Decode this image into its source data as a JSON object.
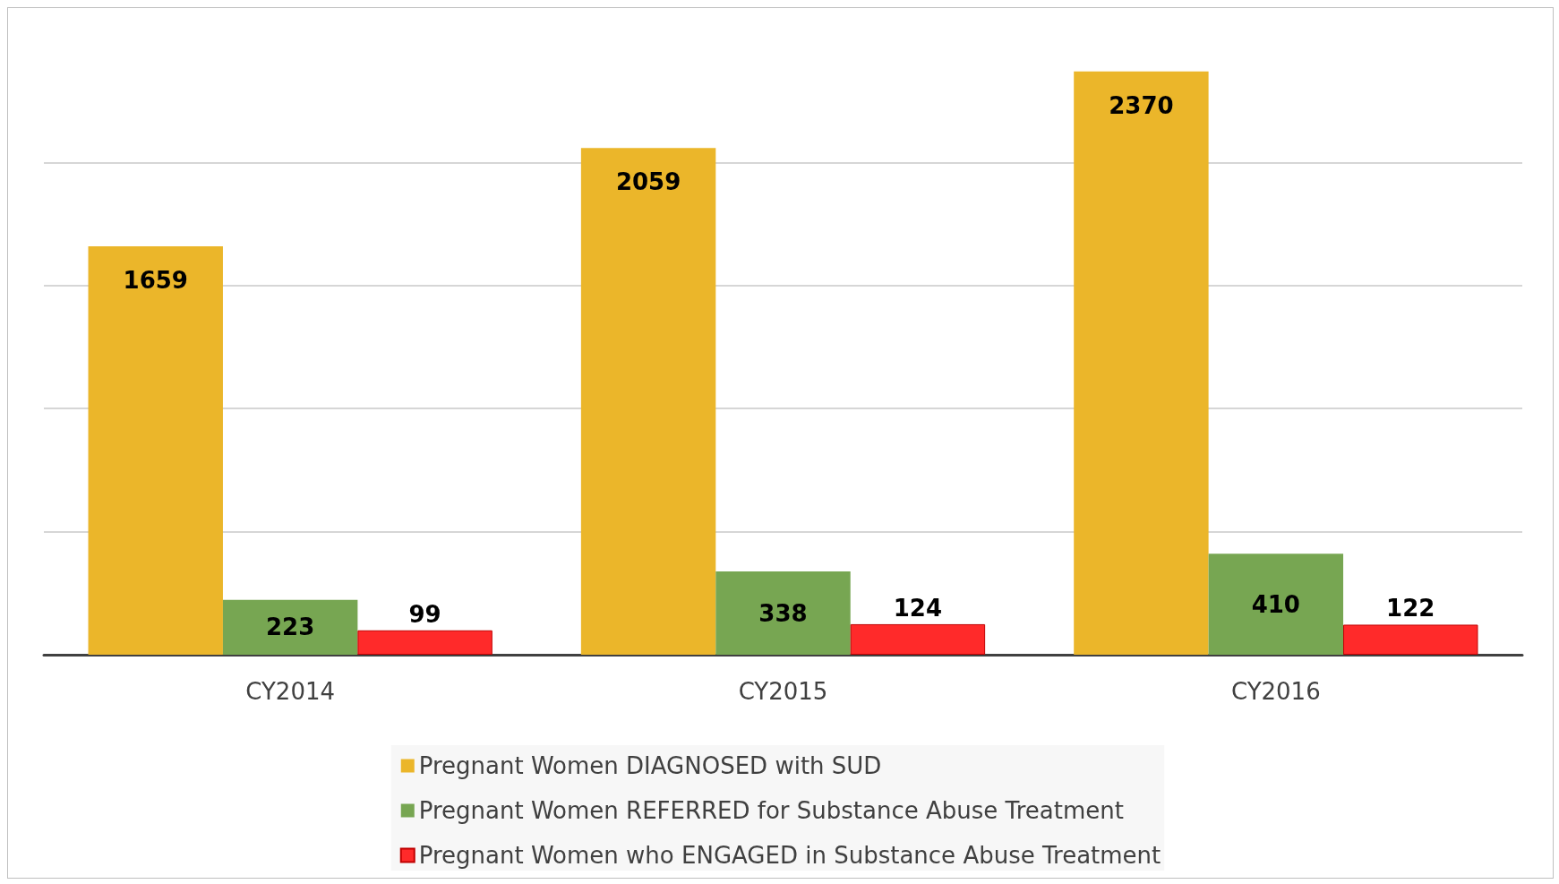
{
  "chart_data": {
    "type": "bar",
    "categories": [
      "CY2014",
      "CY2015",
      "CY2016"
    ],
    "series": [
      {
        "name": "Pregnant Women DIAGNOSED with SUD",
        "color": "#ebb62a",
        "values": [
          1659,
          2059,
          2370
        ]
      },
      {
        "name": "Pregnant Women REFERRED for Substance Abuse Treatment",
        "color": "#77a652",
        "values": [
          223,
          338,
          410
        ]
      },
      {
        "name": "Pregnant Women who ENGAGED in Substance Abuse Treatment",
        "color": "#ff2a2a",
        "values": [
          99,
          124,
          122
        ]
      }
    ],
    "yticks": [
      {
        "value": 0,
        "label": null
      },
      {
        "value": 500,
        "label": null
      },
      {
        "value": 1000,
        "label": null
      },
      {
        "value": 1500,
        "label": null
      },
      {
        "value": 2000,
        "label": null
      }
    ],
    "grid": "y",
    "legend": "bottom",
    "tick_labels": "x",
    "data_labels": true
  }
}
